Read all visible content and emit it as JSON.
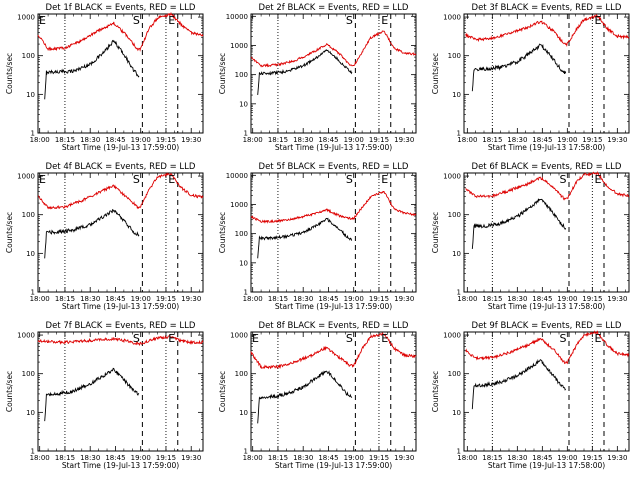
{
  "chart_data": [
    {
      "type": "line",
      "title": "Det 1f BLACK = Events, RED = LLD",
      "xlabel": "Start Time (19-Jul-13 17:59:00)",
      "ylabel": "Counts/sec",
      "yscale": "log",
      "xticks": [
        "18:00",
        "18:15",
        "18:30",
        "18:45",
        "19:00",
        "19:15",
        "19:30"
      ],
      "yticks": [
        "1",
        "10",
        "100",
        "1000"
      ],
      "ylim": [
        1,
        1200
      ],
      "xlim": [
        "17:59",
        "19:37"
      ],
      "markers": [
        {
          "label": "E",
          "time": "17:59"
        },
        {
          "label": "S",
          "time": "19:01"
        },
        {
          "label": "E",
          "time": "19:22"
        }
      ],
      "series": [
        {
          "name": "BLACK",
          "color": "#000000",
          "x": [
            "18:03",
            "18:04",
            "18:10",
            "18:20",
            "18:30",
            "18:38",
            "18:44",
            "18:50",
            "18:56",
            "18:59"
          ],
          "values": [
            7,
            38,
            38,
            40,
            60,
            120,
            240,
            110,
            40,
            30
          ]
        },
        {
          "name": "RED",
          "color": "#dd0000",
          "x": [
            "17:59",
            "18:05",
            "18:15",
            "18:25",
            "18:35",
            "18:44",
            "18:52",
            "18:58",
            "19:00",
            "19:05",
            "19:10",
            "19:18",
            "19:24",
            "19:30",
            "19:37"
          ],
          "values": [
            350,
            150,
            160,
            250,
            450,
            700,
            320,
            150,
            150,
            500,
            950,
            1200,
            650,
            400,
            320
          ]
        }
      ]
    },
    {
      "type": "line",
      "title": "Det 2f BLACK = Events, RED = LLD",
      "xlabel": "Start Time (19-Jul-13 17:59:00)",
      "ylabel": "Counts/sec",
      "yscale": "log",
      "xticks": [
        "18:00",
        "18:15",
        "18:30",
        "18:45",
        "19:00",
        "19:15",
        "19:30"
      ],
      "yticks": [
        "1",
        "10",
        "100",
        "1000",
        "10000"
      ],
      "ylim": [
        1,
        12000
      ],
      "xlim": [
        "17:59",
        "19:37"
      ],
      "markers": [
        {
          "label": "S",
          "time": "19:01"
        },
        {
          "label": "E",
          "time": "19:22"
        }
      ],
      "series": [
        {
          "name": "BLACK",
          "color": "#000000",
          "x": [
            "18:03",
            "18:04",
            "18:10",
            "18:20",
            "18:30",
            "18:38",
            "18:44",
            "18:50",
            "18:56",
            "18:59"
          ],
          "values": [
            20,
            110,
            110,
            130,
            200,
            380,
            700,
            360,
            160,
            120
          ]
        },
        {
          "name": "RED",
          "color": "#dd0000",
          "x": [
            "17:59",
            "18:05",
            "18:15",
            "18:25",
            "18:35",
            "18:44",
            "18:52",
            "18:58",
            "19:00",
            "19:05",
            "19:10",
            "19:18",
            "19:24",
            "19:30",
            "19:37"
          ],
          "values": [
            400,
            200,
            220,
            300,
            550,
            1100,
            500,
            200,
            200,
            600,
            1800,
            3200,
            800,
            550,
            500
          ]
        }
      ]
    },
    {
      "type": "line",
      "title": "Det 3f BLACK = Events, RED = LLD",
      "xlabel": "Start Time (19-Jul-13 17:58:00)",
      "ylabel": "Counts/sec",
      "yscale": "log",
      "xticks": [
        "18:00",
        "18:15",
        "18:30",
        "18:45",
        "19:00",
        "19:15",
        "19:30"
      ],
      "yticks": [
        "1",
        "10",
        "100",
        "1000"
      ],
      "ylim": [
        1,
        1200
      ],
      "xlim": [
        "17:58",
        "19:37"
      ],
      "markers": [
        {
          "label": "E",
          "time": "19:22"
        }
      ],
      "series": [
        {
          "name": "BLACK",
          "color": "#000000",
          "x": [
            "18:03",
            "18:04",
            "18:10",
            "18:20",
            "18:30",
            "18:38",
            "18:44",
            "18:50",
            "18:56",
            "18:59"
          ],
          "values": [
            12,
            45,
            45,
            50,
            70,
            120,
            190,
            100,
            45,
            35
          ]
        },
        {
          "name": "RED",
          "color": "#dd0000",
          "x": [
            "17:59",
            "18:05",
            "18:15",
            "18:25",
            "18:35",
            "18:44",
            "18:52",
            "18:58",
            "19:00",
            "19:05",
            "19:10",
            "19:18",
            "19:24",
            "19:30",
            "19:37"
          ],
          "values": [
            350,
            260,
            280,
            380,
            520,
            780,
            420,
            200,
            200,
            450,
            850,
            1100,
            500,
            320,
            300
          ]
        }
      ]
    },
    {
      "type": "line",
      "title": "Det 4f BLACK = Events, RED = LLD",
      "xlabel": "Start Time (19-Jul-13 17:59:00)",
      "ylabel": "Counts/sec",
      "yscale": "log",
      "xticks": [
        "18:00",
        "18:15",
        "18:30",
        "18:45",
        "19:00",
        "19:15",
        "19:30"
      ],
      "yticks": [
        "1",
        "10",
        "100",
        "1000"
      ],
      "ylim": [
        1,
        1200
      ],
      "xlim": [
        "17:59",
        "19:37"
      ],
      "markers": [
        {
          "label": "E",
          "time": "17:59"
        },
        {
          "label": "S",
          "time": "19:01"
        },
        {
          "label": "E",
          "time": "19:22"
        }
      ],
      "series": [
        {
          "name": "BLACK",
          "color": "#000000",
          "x": [
            "18:03",
            "18:04",
            "18:10",
            "18:20",
            "18:30",
            "18:38",
            "18:44",
            "18:50",
            "18:56",
            "18:59"
          ],
          "values": [
            7,
            35,
            35,
            40,
            55,
            90,
            130,
            70,
            35,
            30
          ]
        },
        {
          "name": "RED",
          "color": "#dd0000",
          "x": [
            "17:59",
            "18:05",
            "18:15",
            "18:25",
            "18:35",
            "18:44",
            "18:52",
            "18:58",
            "19:00",
            "19:05",
            "19:10",
            "19:18",
            "19:24",
            "19:30",
            "19:37"
          ],
          "values": [
            300,
            150,
            160,
            230,
            380,
            550,
            280,
            160,
            160,
            450,
            950,
            1150,
            500,
            320,
            280
          ]
        }
      ]
    },
    {
      "type": "line",
      "title": "Det 5f BLACK = Events, RED = LLD",
      "xlabel": "Start Time (19-Jul-13 17:59:00)",
      "ylabel": "Counts/sec",
      "yscale": "log",
      "xticks": [
        "18:00",
        "18:15",
        "18:30",
        "18:45",
        "19:00",
        "19:15",
        "19:30"
      ],
      "yticks": [
        "1",
        "10",
        "100",
        "1000",
        "10000"
      ],
      "ylim": [
        1,
        12000
      ],
      "xlim": [
        "17:59",
        "19:37"
      ],
      "markers": [
        {
          "label": "S",
          "time": "19:01"
        },
        {
          "label": "E",
          "time": "19:22"
        }
      ],
      "series": [
        {
          "name": "BLACK",
          "color": "#000000",
          "x": [
            "18:03",
            "18:04",
            "18:10",
            "18:20",
            "18:30",
            "18:38",
            "18:44",
            "18:50",
            "18:56",
            "18:59"
          ],
          "values": [
            15,
            70,
            70,
            80,
            110,
            190,
            320,
            170,
            80,
            60
          ]
        },
        {
          "name": "RED",
          "color": "#dd0000",
          "x": [
            "17:59",
            "18:05",
            "18:15",
            "18:25",
            "18:35",
            "18:44",
            "18:52",
            "18:58",
            "19:00",
            "19:05",
            "19:10",
            "19:18",
            "19:24",
            "19:30",
            "19:37"
          ],
          "values": [
            380,
            260,
            270,
            330,
            450,
            650,
            400,
            330,
            330,
            800,
            1800,
            2800,
            700,
            500,
            450
          ]
        }
      ]
    },
    {
      "type": "line",
      "title": "Det 6f BLACK = Events, RED = LLD",
      "xlabel": "Start Time (19-Jul-13 17:58:00)",
      "ylabel": "Counts/sec",
      "yscale": "log",
      "xticks": [
        "18:00",
        "18:15",
        "18:30",
        "18:45",
        "19:00",
        "19:15",
        "19:30"
      ],
      "yticks": [
        "1",
        "10",
        "100",
        "1000"
      ],
      "ylim": [
        1,
        1200
      ],
      "xlim": [
        "17:58",
        "19:37"
      ],
      "markers": [
        {
          "label": "S",
          "time": "19:01"
        },
        {
          "label": "E",
          "time": "19:22"
        }
      ],
      "series": [
        {
          "name": "BLACK",
          "color": "#000000",
          "x": [
            "18:03",
            "18:04",
            "18:10",
            "18:20",
            "18:30",
            "18:38",
            "18:44",
            "18:50",
            "18:56",
            "18:59"
          ],
          "values": [
            12,
            50,
            50,
            60,
            90,
            160,
            260,
            130,
            60,
            45
          ]
        },
        {
          "name": "RED",
          "color": "#dd0000",
          "x": [
            "17:59",
            "18:05",
            "18:15",
            "18:25",
            "18:35",
            "18:44",
            "18:52",
            "18:58",
            "19:00",
            "19:05",
            "19:10",
            "19:18",
            "19:24",
            "19:30",
            "19:37"
          ],
          "values": [
            450,
            300,
            300,
            420,
            600,
            900,
            500,
            260,
            260,
            650,
            1100,
            1200,
            550,
            350,
            300
          ]
        }
      ]
    },
    {
      "type": "line",
      "title": "Det 7f BLACK = Events, RED = LLD",
      "xlabel": "Start Time (19-Jul-13 17:59:00)",
      "ylabel": "Counts/sec",
      "yscale": "log",
      "xticks": [
        "18:00",
        "18:15",
        "18:30",
        "18:45",
        "19:00",
        "19:15",
        "19:30"
      ],
      "yticks": [
        "1",
        "10",
        "100",
        "1000"
      ],
      "ylim": [
        1,
        1200
      ],
      "xlim": [
        "17:59",
        "19:37"
      ],
      "markers": [
        {
          "label": "S",
          "time": "19:01"
        },
        {
          "label": "E",
          "time": "19:22"
        }
      ],
      "series": [
        {
          "name": "BLACK",
          "color": "#000000",
          "x": [
            "18:03",
            "18:04",
            "18:10",
            "18:20",
            "18:30",
            "18:38",
            "18:44",
            "18:50",
            "18:56",
            "18:59"
          ],
          "values": [
            6,
            30,
            30,
            35,
            55,
            90,
            130,
            70,
            35,
            30
          ]
        },
        {
          "name": "RED",
          "color": "#dd0000",
          "x": [
            "17:59",
            "18:05",
            "18:15",
            "18:25",
            "18:35",
            "18:44",
            "18:52",
            "18:58",
            "19:00",
            "19:05",
            "19:10",
            "19:18",
            "19:24",
            "19:30",
            "19:37"
          ],
          "values": [
            700,
            680,
            650,
            700,
            750,
            800,
            700,
            600,
            600,
            700,
            850,
            900,
            700,
            650,
            650
          ]
        }
      ]
    },
    {
      "type": "line",
      "title": "Det 8f BLACK = Events, RED = LLD",
      "xlabel": "Start Time (19-Jul-13 17:59:00)",
      "ylabel": "Counts/sec",
      "yscale": "log",
      "xticks": [
        "18:00",
        "18:15",
        "18:30",
        "18:45",
        "19:00",
        "19:15",
        "19:30"
      ],
      "yticks": [
        "1",
        "10",
        "100",
        "1000"
      ],
      "ylim": [
        1,
        1200
      ],
      "xlim": [
        "17:59",
        "19:37"
      ],
      "markers": [
        {
          "label": "E",
          "time": "17:59"
        },
        {
          "label": "S",
          "time": "19:01"
        },
        {
          "label": "E",
          "time": "19:22"
        }
      ],
      "series": [
        {
          "name": "BLACK",
          "color": "#000000",
          "x": [
            "18:03",
            "18:04",
            "18:10",
            "18:20",
            "18:30",
            "18:38",
            "18:44",
            "18:50",
            "18:56",
            "18:59"
          ],
          "values": [
            5,
            25,
            25,
            30,
            45,
            80,
            120,
            60,
            30,
            25
          ]
        },
        {
          "name": "RED",
          "color": "#dd0000",
          "x": [
            "17:59",
            "18:05",
            "18:15",
            "18:25",
            "18:35",
            "18:44",
            "18:52",
            "18:58",
            "19:00",
            "19:05",
            "19:10",
            "19:18",
            "19:24",
            "19:30",
            "19:37"
          ],
          "values": [
            350,
            150,
            150,
            200,
            300,
            480,
            250,
            160,
            160,
            450,
            900,
            1100,
            450,
            300,
            280
          ]
        }
      ]
    },
    {
      "type": "line",
      "title": "Det 9f BLACK = Events, RED = LLD",
      "xlabel": "Start Time (19-Jul-13 17:58:00)",
      "ylabel": "Counts/sec",
      "yscale": "log",
      "xticks": [
        "18:00",
        "18:15",
        "18:30",
        "18:45",
        "19:00",
        "19:15",
        "19:30"
      ],
      "yticks": [
        "1",
        "10",
        "100",
        "1000"
      ],
      "ylim": [
        1,
        1200
      ],
      "xlim": [
        "17:58",
        "19:37"
      ],
      "markers": [
        {
          "label": "S",
          "time": "19:01"
        },
        {
          "label": "E",
          "time": "19:22"
        }
      ],
      "series": [
        {
          "name": "BLACK",
          "color": "#000000",
          "x": [
            "18:03",
            "18:04",
            "18:10",
            "18:20",
            "18:30",
            "18:38",
            "18:44",
            "18:50",
            "18:56",
            "18:59"
          ],
          "values": [
            12,
            50,
            50,
            60,
            90,
            150,
            220,
            110,
            50,
            40
          ]
        },
        {
          "name": "RED",
          "color": "#dd0000",
          "x": [
            "17:59",
            "18:05",
            "18:15",
            "18:25",
            "18:35",
            "18:44",
            "18:52",
            "18:58",
            "19:00",
            "19:05",
            "19:10",
            "19:18",
            "19:24",
            "19:30",
            "19:37"
          ],
          "values": [
            400,
            250,
            260,
            350,
            520,
            800,
            420,
            200,
            200,
            500,
            1000,
            1200,
            550,
            330,
            300
          ]
        }
      ]
    }
  ]
}
